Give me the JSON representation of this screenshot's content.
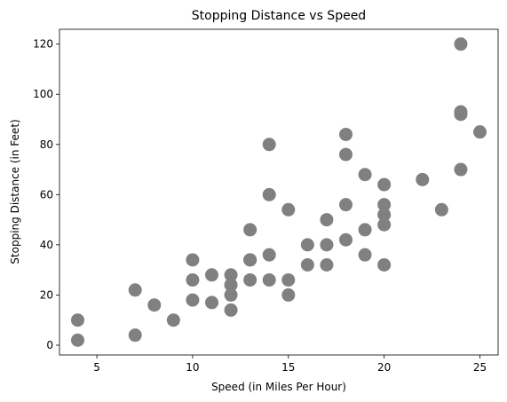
{
  "chart_data": {
    "type": "scatter",
    "title": "Stopping Distance vs Speed",
    "xlabel": "Speed (in Miles Per Hour)",
    "ylabel": "Stopping Distance (in Feet)",
    "xlim": [
      3.05,
      25.95
    ],
    "ylim": [
      -3.9,
      125.9
    ],
    "xticks": [
      5,
      10,
      15,
      20,
      25
    ],
    "yticks": [
      0,
      20,
      40,
      60,
      80,
      100,
      120
    ],
    "grid": false,
    "marker_color": "#808080",
    "points": [
      {
        "x": 4,
        "y": 2
      },
      {
        "x": 4,
        "y": 10
      },
      {
        "x": 7,
        "y": 4
      },
      {
        "x": 7,
        "y": 22
      },
      {
        "x": 8,
        "y": 16
      },
      {
        "x": 9,
        "y": 10
      },
      {
        "x": 10,
        "y": 18
      },
      {
        "x": 10,
        "y": 26
      },
      {
        "x": 10,
        "y": 34
      },
      {
        "x": 11,
        "y": 17
      },
      {
        "x": 11,
        "y": 28
      },
      {
        "x": 12,
        "y": 14
      },
      {
        "x": 12,
        "y": 20
      },
      {
        "x": 12,
        "y": 24
      },
      {
        "x": 12,
        "y": 28
      },
      {
        "x": 13,
        "y": 26
      },
      {
        "x": 13,
        "y": 34
      },
      {
        "x": 13,
        "y": 34
      },
      {
        "x": 13,
        "y": 46
      },
      {
        "x": 14,
        "y": 26
      },
      {
        "x": 14,
        "y": 36
      },
      {
        "x": 14,
        "y": 60
      },
      {
        "x": 14,
        "y": 80
      },
      {
        "x": 15,
        "y": 20
      },
      {
        "x": 15,
        "y": 26
      },
      {
        "x": 15,
        "y": 54
      },
      {
        "x": 16,
        "y": 32
      },
      {
        "x": 16,
        "y": 40
      },
      {
        "x": 17,
        "y": 32
      },
      {
        "x": 17,
        "y": 40
      },
      {
        "x": 17,
        "y": 50
      },
      {
        "x": 18,
        "y": 42
      },
      {
        "x": 18,
        "y": 56
      },
      {
        "x": 18,
        "y": 76
      },
      {
        "x": 18,
        "y": 84
      },
      {
        "x": 19,
        "y": 36
      },
      {
        "x": 19,
        "y": 46
      },
      {
        "x": 19,
        "y": 68
      },
      {
        "x": 20,
        "y": 32
      },
      {
        "x": 20,
        "y": 48
      },
      {
        "x": 20,
        "y": 52
      },
      {
        "x": 20,
        "y": 56
      },
      {
        "x": 20,
        "y": 64
      },
      {
        "x": 22,
        "y": 66
      },
      {
        "x": 23,
        "y": 54
      },
      {
        "x": 24,
        "y": 70
      },
      {
        "x": 24,
        "y": 92
      },
      {
        "x": 24,
        "y": 93
      },
      {
        "x": 24,
        "y": 120
      },
      {
        "x": 25,
        "y": 85
      }
    ]
  }
}
